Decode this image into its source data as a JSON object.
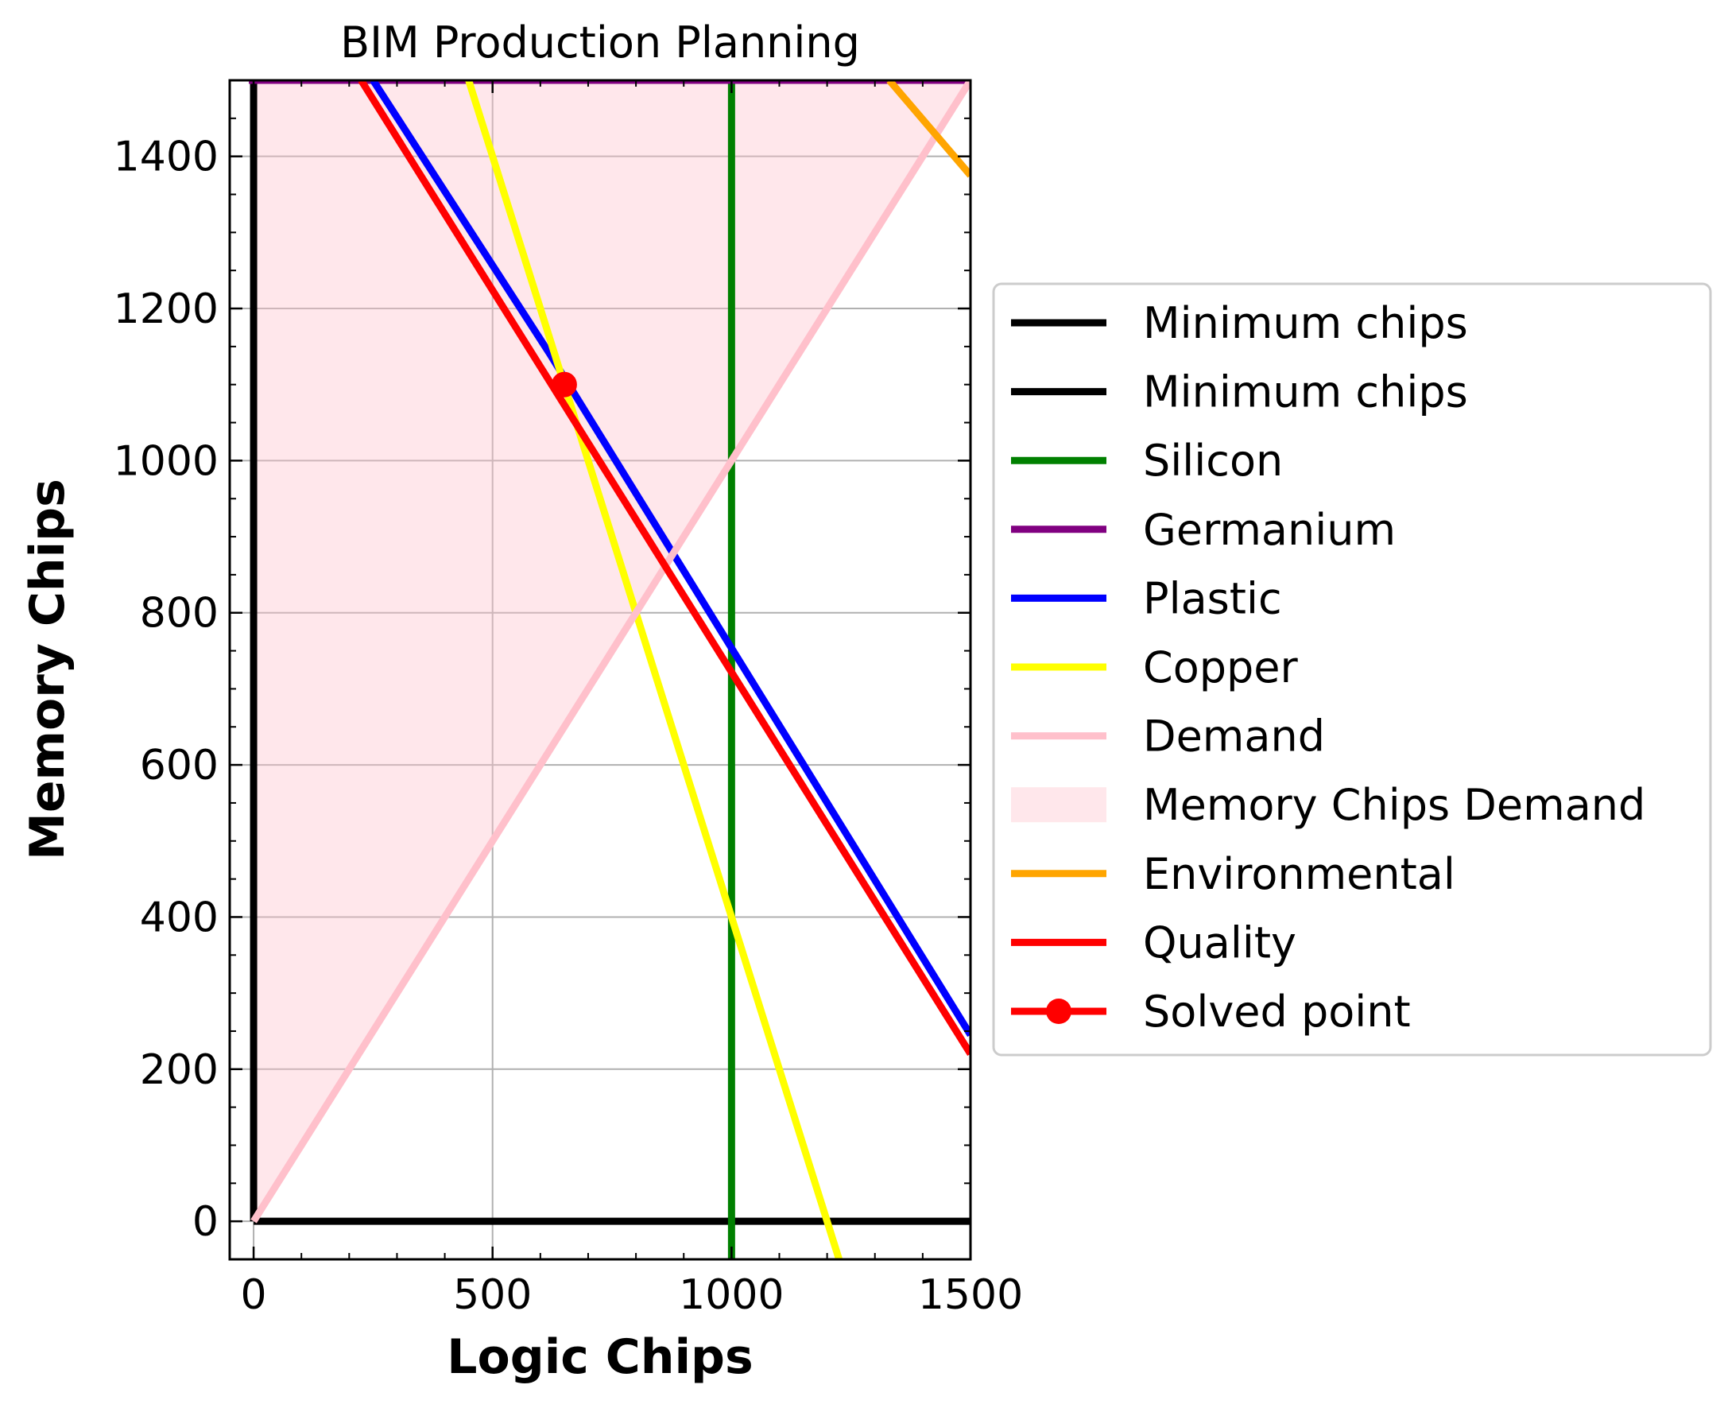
{
  "chart_data": {
    "type": "line",
    "title": "BIM Production Planning",
    "xlabel": "Logic Chips",
    "ylabel": "Memory Chips",
    "xlim": [
      -50,
      1500
    ],
    "ylim": [
      -50,
      1500
    ],
    "xticks": [
      0,
      500,
      1000,
      1500
    ],
    "xtick_labels": [
      "0",
      "500",
      "1000",
      "1500"
    ],
    "yticks": [
      0,
      200,
      400,
      600,
      800,
      1000,
      1200,
      1400
    ],
    "ytick_labels": [
      "0",
      "200",
      "400",
      "600",
      "800",
      "1000",
      "1200",
      "1400"
    ],
    "grid": true,
    "legend_position": "outside-right",
    "series": [
      {
        "name": "Minimum chips",
        "color": "#000000",
        "style": "line",
        "x": [
          0,
          0
        ],
        "y": [
          0,
          1500
        ]
      },
      {
        "name": "Minimum chips",
        "color": "#000000",
        "style": "line",
        "x": [
          0,
          1500
        ],
        "y": [
          0,
          0
        ]
      },
      {
        "name": "Silicon",
        "color": "#008000",
        "style": "line",
        "x": [
          1000,
          1000
        ],
        "y": [
          -50,
          1500
        ]
      },
      {
        "name": "Germanium",
        "color": "#800080",
        "style": "line",
        "x": [
          -10,
          1500
        ],
        "y": [
          1500,
          1500
        ]
      },
      {
        "name": "Plastic",
        "color": "#0000ff",
        "style": "line",
        "x": [
          250,
          620,
          1500
        ],
        "y": [
          1500,
          1140,
          245
        ]
      },
      {
        "name": "Copper",
        "color": "#ffff00",
        "style": "line",
        "x": [
          450,
          1225
        ],
        "y": [
          1500,
          -50
        ]
      },
      {
        "name": "Demand",
        "color": "#ffc0cb",
        "style": "line",
        "x": [
          0,
          1500
        ],
        "y": [
          0,
          1500
        ]
      },
      {
        "name": "Memory Chips Demand",
        "color": "#ffc0cb",
        "style": "fill",
        "x": [
          0,
          1500
        ],
        "y": [
          0,
          1500
        ]
      },
      {
        "name": "Environmental",
        "color": "#ffa500",
        "style": "line",
        "x": [
          1330,
          1500
        ],
        "y": [
          1500,
          1375
        ]
      },
      {
        "name": "Quality",
        "color": "#ff0000",
        "style": "line",
        "x": [
          225,
          1500
        ],
        "y": [
          1500,
          220
        ]
      },
      {
        "name": "Solved point",
        "color": "#ff0000",
        "style": "marker-line",
        "x": [
          650
        ],
        "y": [
          1100
        ]
      }
    ]
  }
}
